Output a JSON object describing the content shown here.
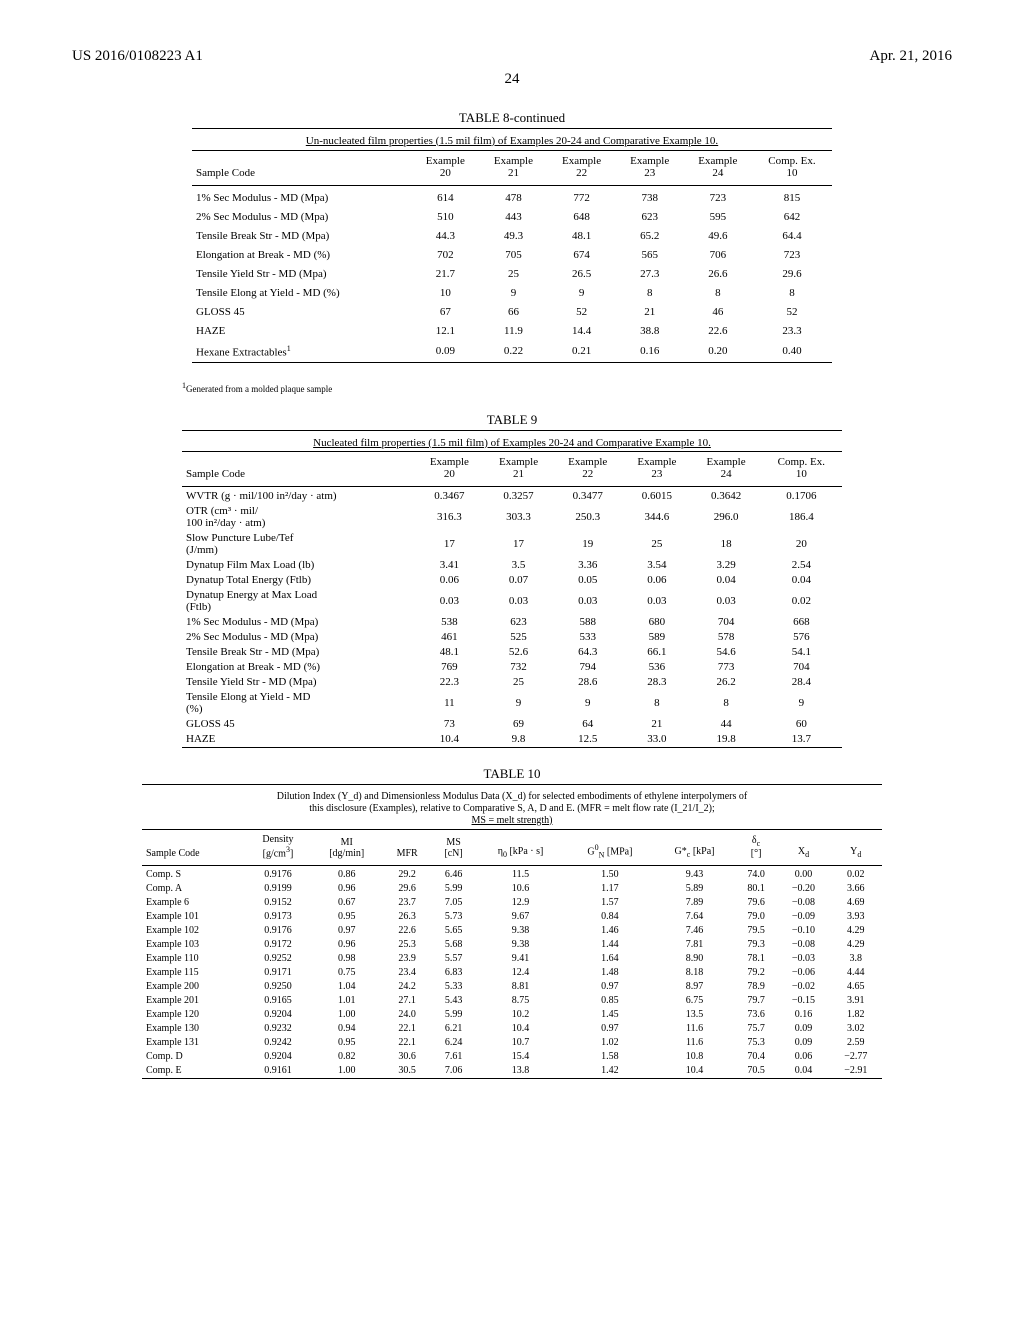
{
  "header": {
    "left": "US 2016/0108223 A1",
    "right": "Apr. 21, 2016",
    "page": "24"
  },
  "table8": {
    "title": "TABLE 8-continued",
    "caption": "Un-nucleated film properties (1.5 mil film) of Examples 20-24 and Comparative Example 10.",
    "col0": "Sample Code",
    "columns": [
      "Example\n20",
      "Example\n21",
      "Example\n22",
      "Example\n23",
      "Example\n24",
      "Comp. Ex.\n10"
    ],
    "rows": [
      {
        "label": "1% Sec Modulus - MD (Mpa)",
        "values": [
          "614",
          "478",
          "772",
          "738",
          "723",
          "815"
        ]
      },
      {
        "label": "2% Sec Modulus - MD (Mpa)",
        "values": [
          "510",
          "443",
          "648",
          "623",
          "595",
          "642"
        ]
      },
      {
        "label": "Tensile Break Str - MD (Mpa)",
        "values": [
          "44.3",
          "49.3",
          "48.1",
          "65.2",
          "49.6",
          "64.4"
        ]
      },
      {
        "label": "Elongation at Break - MD (%)",
        "values": [
          "702",
          "705",
          "674",
          "565",
          "706",
          "723"
        ]
      },
      {
        "label": "Tensile Yield Str - MD (Mpa)",
        "values": [
          "21.7",
          "25",
          "26.5",
          "27.3",
          "26.6",
          "29.6"
        ]
      },
      {
        "label": "Tensile Elong at Yield - MD (%)",
        "values": [
          "10",
          "9",
          "9",
          "8",
          "8",
          "8"
        ]
      },
      {
        "label": "GLOSS 45",
        "values": [
          "67",
          "66",
          "52",
          "21",
          "46",
          "52"
        ]
      },
      {
        "label": "HAZE",
        "values": [
          "12.1",
          "11.9",
          "14.4",
          "38.8",
          "22.6",
          "23.3"
        ]
      },
      {
        "label": "Hexane Extractables",
        "sup": "1",
        "values": [
          "0.09",
          "0.22",
          "0.21",
          "0.16",
          "0.20",
          "0.40"
        ]
      }
    ],
    "footnote_sup": "1",
    "footnote": "Generated from a molded plaque sample"
  },
  "table9": {
    "title": "TABLE 9",
    "caption": "Nucleated film properties (1.5 mil film) of Examples 20-24 and Comparative Example 10.",
    "col0": "Sample Code",
    "columns": [
      "Example\n20",
      "Example\n21",
      "Example\n22",
      "Example\n23",
      "Example\n24",
      "Comp. Ex.\n10"
    ],
    "rows": [
      {
        "label": "WVTR (g · mil/100 in²/day · atm)",
        "values": [
          "0.3467",
          "0.3257",
          "0.3477",
          "0.6015",
          "0.3642",
          "0.1706"
        ]
      },
      {
        "label": "OTR (cm³ · mil/\n100 in²/day · atm)",
        "values": [
          "316.3",
          "303.3",
          "250.3",
          "344.6",
          "296.0",
          "186.4"
        ]
      },
      {
        "label": "Slow Puncture Lube/Tef\n(J/mm)",
        "values": [
          "17",
          "17",
          "19",
          "25",
          "18",
          "20"
        ]
      },
      {
        "label": "Dynatup Film Max Load (lb)",
        "values": [
          "3.41",
          "3.5",
          "3.36",
          "3.54",
          "3.29",
          "2.54"
        ]
      },
      {
        "label": "Dynatup Total Energy (Ftlb)",
        "values": [
          "0.06",
          "0.07",
          "0.05",
          "0.06",
          "0.04",
          "0.04"
        ]
      },
      {
        "label": "Dynatup Energy at Max Load\n(Ftlb)",
        "values": [
          "0.03",
          "0.03",
          "0.03",
          "0.03",
          "0.03",
          "0.02"
        ]
      },
      {
        "label": "1% Sec Modulus - MD (Mpa)",
        "values": [
          "538",
          "623",
          "588",
          "680",
          "704",
          "668"
        ]
      },
      {
        "label": "2% Sec Modulus - MD (Mpa)",
        "values": [
          "461",
          "525",
          "533",
          "589",
          "578",
          "576"
        ]
      },
      {
        "label": "Tensile Break Str - MD (Mpa)",
        "values": [
          "48.1",
          "52.6",
          "64.3",
          "66.1",
          "54.6",
          "54.1"
        ]
      },
      {
        "label": "Elongation at Break - MD (%)",
        "values": [
          "769",
          "732",
          "794",
          "536",
          "773",
          "704"
        ]
      },
      {
        "label": "Tensile Yield Str - MD (Mpa)",
        "values": [
          "22.3",
          "25",
          "28.6",
          "28.3",
          "26.2",
          "28.4"
        ]
      },
      {
        "label": "Tensile Elong at Yield - MD\n(%)",
        "values": [
          "11",
          "9",
          "9",
          "8",
          "8",
          "9"
        ]
      },
      {
        "label": "GLOSS 45",
        "values": [
          "73",
          "69",
          "64",
          "21",
          "44",
          "60"
        ]
      },
      {
        "label": "HAZE",
        "values": [
          "10.4",
          "9.8",
          "12.5",
          "33.0",
          "19.8",
          "13.7"
        ]
      }
    ]
  },
  "table10": {
    "title": "TABLE 10",
    "caption_lines": [
      "Dilution Index (Y_d) and Dimensionless Modulus Data (X_d) for selected embodiments of ethylene interpolymers of",
      "this disclosure (Examples), relative to Comparative S, A, D and E. (MFR = melt flow rate (I_21/I_2);",
      "MS = melt strength)"
    ],
    "columns": [
      "Sample Code",
      "Density\n[g/cm³]",
      "MI\n[dg/min]",
      "MFR",
      "MS\n[cN]",
      "η₀ [kPa · s]",
      "G⁰_N [MPa]",
      "G*_c [kPa]",
      "δ_c\n[°]",
      "X_d",
      "Y_d"
    ],
    "rows": [
      [
        "Comp. S",
        "0.9176",
        "0.86",
        "29.2",
        "6.46",
        "11.5",
        "1.50",
        "9.43",
        "74.0",
        "0.00",
        "0.02"
      ],
      [
        "Comp. A",
        "0.9199",
        "0.96",
        "29.6",
        "5.99",
        "10.6",
        "1.17",
        "5.89",
        "80.1",
        "−0.20",
        "3.66"
      ],
      [
        "Example 6",
        "0.9152",
        "0.67",
        "23.7",
        "7.05",
        "12.9",
        "1.57",
        "7.89",
        "79.6",
        "−0.08",
        "4.69"
      ],
      [
        "Example 101",
        "0.9173",
        "0.95",
        "26.3",
        "5.73",
        "9.67",
        "0.84",
        "7.64",
        "79.0",
        "−0.09",
        "3.93"
      ],
      [
        "Example 102",
        "0.9176",
        "0.97",
        "22.6",
        "5.65",
        "9.38",
        "1.46",
        "7.46",
        "79.5",
        "−0.10",
        "4.29"
      ],
      [
        "Example 103",
        "0.9172",
        "0.96",
        "25.3",
        "5.68",
        "9.38",
        "1.44",
        "7.81",
        "79.3",
        "−0.08",
        "4.29"
      ],
      [
        "Example 110",
        "0.9252",
        "0.98",
        "23.9",
        "5.57",
        "9.41",
        "1.64",
        "8.90",
        "78.1",
        "−0.03",
        "3.8"
      ],
      [
        "Example 115",
        "0.9171",
        "0.75",
        "23.4",
        "6.83",
        "12.4",
        "1.48",
        "8.18",
        "79.2",
        "−0.06",
        "4.44"
      ],
      [
        "Example 200",
        "0.9250",
        "1.04",
        "24.2",
        "5.33",
        "8.81",
        "0.97",
        "8.97",
        "78.9",
        "−0.02",
        "4.65"
      ],
      [
        "Example 201",
        "0.9165",
        "1.01",
        "27.1",
        "5.43",
        "8.75",
        "0.85",
        "6.75",
        "79.7",
        "−0.15",
        "3.91"
      ],
      [
        "Example 120",
        "0.9204",
        "1.00",
        "24.0",
        "5.99",
        "10.2",
        "1.45",
        "13.5",
        "73.6",
        "0.16",
        "1.82"
      ],
      [
        "Example 130",
        "0.9232",
        "0.94",
        "22.1",
        "6.21",
        "10.4",
        "0.97",
        "11.6",
        "75.7",
        "0.09",
        "3.02"
      ],
      [
        "Example 131",
        "0.9242",
        "0.95",
        "22.1",
        "6.24",
        "10.7",
        "1.02",
        "11.6",
        "75.3",
        "0.09",
        "2.59"
      ],
      [
        "Comp. D",
        "0.9204",
        "0.82",
        "30.6",
        "7.61",
        "15.4",
        "1.58",
        "10.8",
        "70.4",
        "0.06",
        "−2.77"
      ],
      [
        "Comp. E",
        "0.9161",
        "1.00",
        "30.5",
        "7.06",
        "13.8",
        "1.42",
        "10.4",
        "70.5",
        "0.04",
        "−2.91"
      ]
    ]
  }
}
